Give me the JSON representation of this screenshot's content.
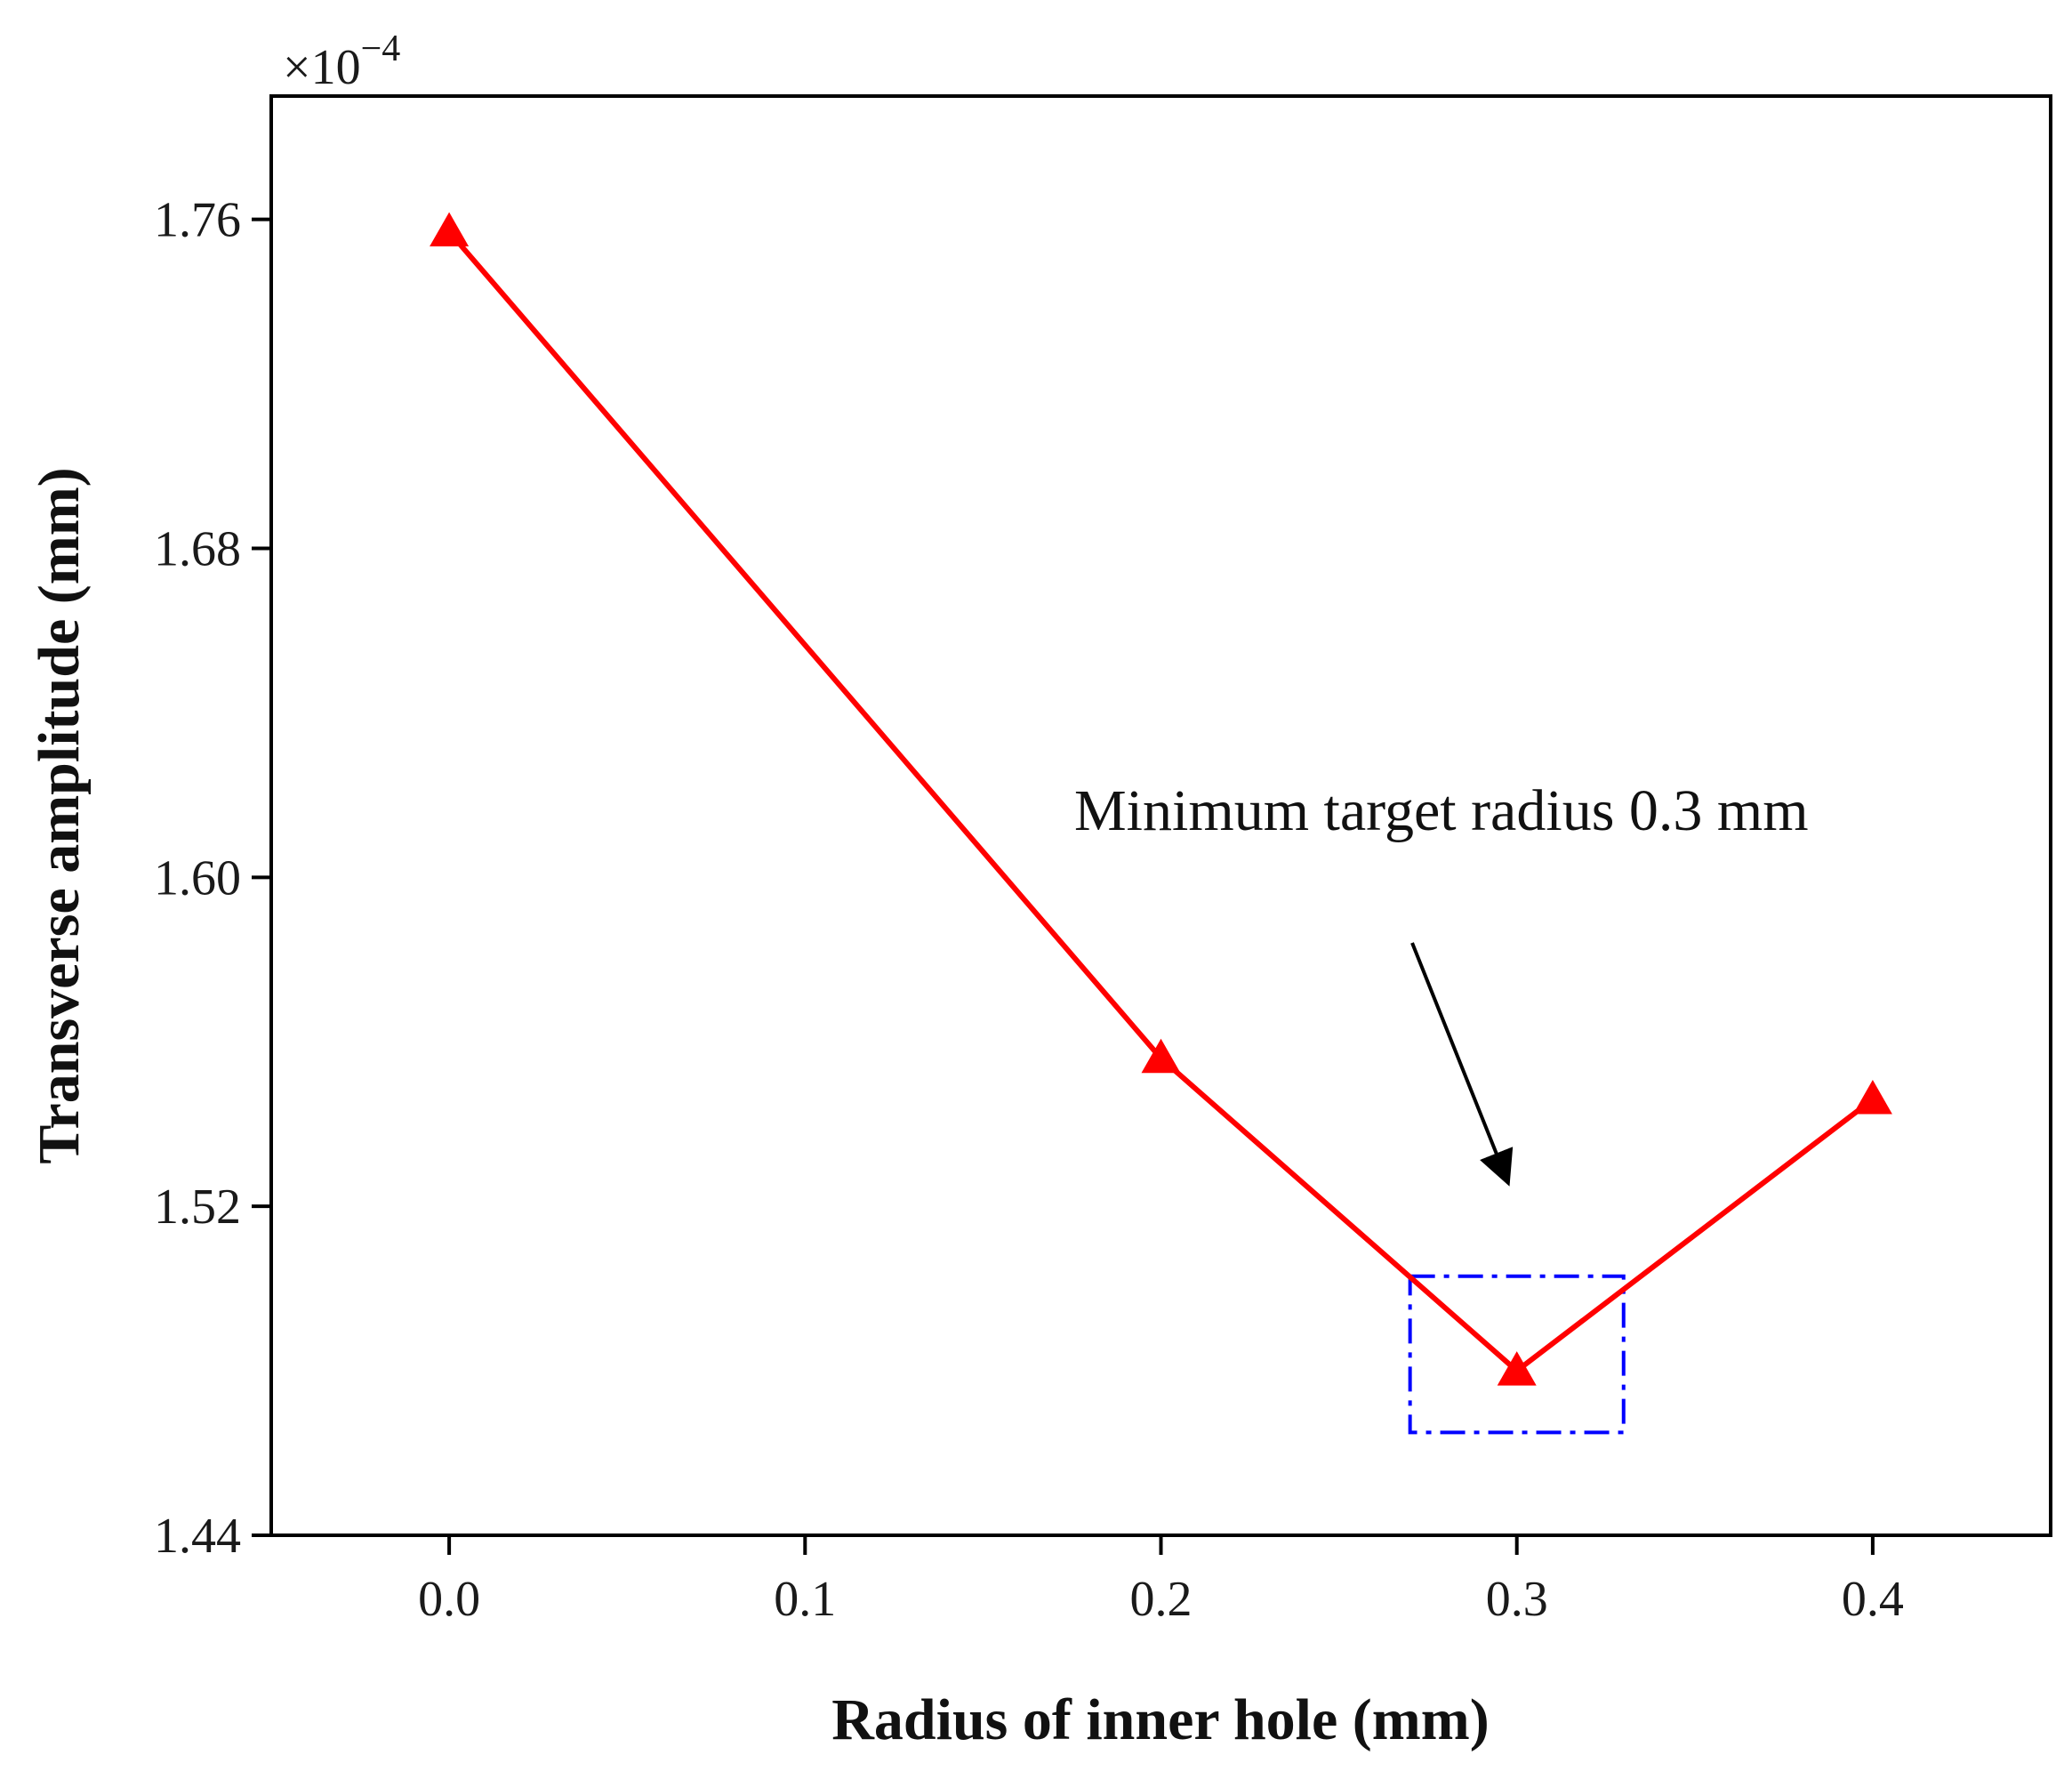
{
  "chart_data": {
    "type": "line",
    "title": "",
    "xlabel": "Radius of inner hole (mm)",
    "ylabel": "Transverse amplitude (mm)",
    "xlim": [
      -0.05,
      0.45
    ],
    "ylim": [
      1.44,
      1.79
    ],
    "x_ticks": [
      "0.0",
      "0.1",
      "0.2",
      "0.3",
      "0.4"
    ],
    "y_ticks": [
      "1.44",
      "1.52",
      "1.60",
      "1.68",
      "1.76"
    ],
    "y_multiplier": {
      "base": "×10",
      "exponent": "−4"
    },
    "grid": false,
    "series": [
      {
        "name": "Transverse amplitude",
        "color": "#ff0000",
        "marker": "triangle-up",
        "x": [
          0.0,
          0.2,
          0.3,
          0.4
        ],
        "values": [
          1.757,
          1.556,
          1.48,
          1.546
        ]
      }
    ],
    "annotation": {
      "text": "Minimum target radius  0.3 mm",
      "arrow_color": "#000000",
      "box_color": "#0000ff",
      "box_x_range": [
        0.27,
        0.33
      ],
      "box_y_range": [
        1.465,
        1.503
      ]
    }
  }
}
